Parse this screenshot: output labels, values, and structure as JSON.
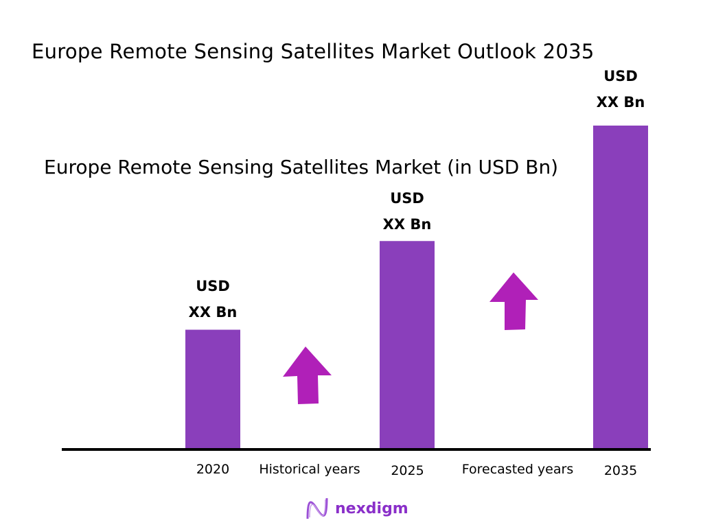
{
  "chart_data": {
    "type": "bar",
    "title": "Europe Remote Sensing Satellites Market Outlook 2035",
    "subtitle": "Europe Remote Sensing Satellites Market (in USD Bn)",
    "categories": [
      "2020",
      "2025",
      "2035"
    ],
    "values": [
      36.7,
      64.2,
      100
    ],
    "value_labels": [
      "USD\nXX Bn",
      "USD\nXX Bn",
      "USD\nXX Bn"
    ],
    "value_label_lines": [
      [
        "USD",
        "XX Bn"
      ],
      [
        "USD",
        "XX Bn"
      ],
      [
        "USD",
        "XX Bn"
      ]
    ],
    "period_labels": [
      "Historical years",
      "Forecasted years"
    ],
    "ylim": [
      0,
      100
    ],
    "grid": false,
    "bar_color": "#8a3fbb",
    "arrow_color": "#b020b8",
    "axis_color": "#000000"
  },
  "logo": {
    "text": "nexdigm",
    "color": "#8a2fc9"
  }
}
